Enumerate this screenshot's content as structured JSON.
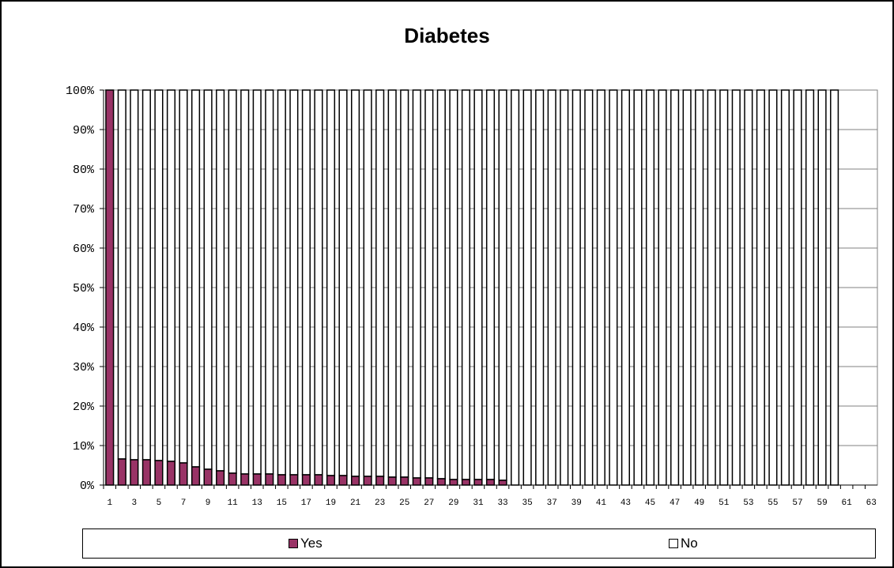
{
  "chart_data": {
    "type": "bar",
    "stacked": "percent",
    "title": "Diabetes",
    "xlabel": "",
    "ylabel": "",
    "ylim": [
      0,
      100
    ],
    "y_ticks": [
      "0%",
      "10%",
      "20%",
      "30%",
      "40%",
      "50%",
      "60%",
      "70%",
      "80%",
      "90%",
      "100%"
    ],
    "x_tick_labels": [
      "1",
      "3",
      "5",
      "7",
      "9",
      "11",
      "13",
      "15",
      "17",
      "19",
      "21",
      "23",
      "25",
      "27",
      "29",
      "31",
      "33",
      "35",
      "37",
      "39",
      "41",
      "43",
      "45",
      "47",
      "49",
      "51",
      "53",
      "55",
      "57",
      "59",
      "61",
      "63"
    ],
    "categories": [
      1,
      2,
      3,
      4,
      5,
      6,
      7,
      8,
      9,
      10,
      11,
      12,
      13,
      14,
      15,
      16,
      17,
      18,
      19,
      20,
      21,
      22,
      23,
      24,
      25,
      26,
      27,
      28,
      29,
      30,
      31,
      32,
      33,
      34,
      35,
      36,
      37,
      38,
      39,
      40,
      41,
      42,
      43,
      44,
      45,
      46,
      47,
      48,
      49,
      50,
      51,
      52,
      53,
      54,
      55,
      56,
      57,
      58,
      59,
      60,
      61,
      62,
      63
    ],
    "series": [
      {
        "name": "Yes",
        "color": "#993366",
        "values": [
          100,
          6.6,
          6.4,
          6.4,
          6.2,
          6.0,
          5.6,
          4.6,
          4.0,
          3.6,
          3.0,
          2.8,
          2.8,
          2.8,
          2.6,
          2.6,
          2.6,
          2.6,
          2.4,
          2.4,
          2.2,
          2.2,
          2.2,
          2.0,
          2.0,
          1.8,
          1.8,
          1.6,
          1.4,
          1.4,
          1.4,
          1.4,
          1.2,
          0,
          0,
          0,
          0,
          0,
          0,
          0,
          0,
          0,
          0,
          0,
          0,
          0,
          0,
          0,
          0,
          0,
          0,
          0,
          0,
          0,
          0,
          0,
          0,
          0,
          0,
          0,
          0,
          0,
          0
        ]
      },
      {
        "name": "No",
        "color": "#ffffff",
        "values": [
          0,
          93.4,
          93.6,
          93.6,
          93.8,
          94.0,
          94.4,
          95.4,
          96.0,
          96.4,
          97.0,
          97.2,
          97.2,
          97.2,
          97.4,
          97.4,
          97.4,
          97.4,
          97.6,
          97.6,
          97.8,
          97.8,
          97.8,
          98.0,
          98.0,
          98.2,
          98.2,
          98.4,
          98.6,
          98.6,
          98.6,
          98.6,
          98.8,
          100,
          100,
          100,
          100,
          100,
          100,
          100,
          100,
          100,
          100,
          100,
          100,
          100,
          100,
          100,
          100,
          100,
          100,
          100,
          100,
          100,
          100,
          100,
          100,
          100,
          100,
          100,
          0,
          0,
          0
        ]
      }
    ],
    "grid": true,
    "legend_position": "bottom"
  }
}
